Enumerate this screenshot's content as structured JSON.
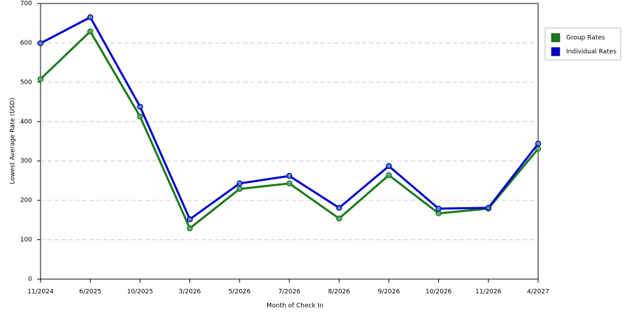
{
  "chart_data": {
    "type": "line",
    "x_label": "Month of Check In",
    "y_label": "Lowest Average Rate (USD)",
    "categories": [
      "11/2024",
      "6/2025",
      "10/2025",
      "3/2026",
      "5/2026",
      "7/2026",
      "8/2026",
      "9/2026",
      "10/2026",
      "11/2026",
      "4/2027"
    ],
    "series": [
      {
        "name": "Group Rates",
        "color": "#1a7a1a",
        "values": [
          508,
          629,
          413,
          129,
          229,
          243,
          154,
          264,
          167,
          179,
          331
        ]
      },
      {
        "name": "Individual Rates",
        "color": "#0000cc",
        "values": [
          599,
          665,
          438,
          152,
          243,
          262,
          181,
          287,
          179,
          181,
          344
        ]
      }
    ],
    "ylim": [
      0,
      700
    ],
    "yticks": [
      0,
      100,
      200,
      300,
      400,
      500,
      600,
      700
    ],
    "grid": true
  }
}
